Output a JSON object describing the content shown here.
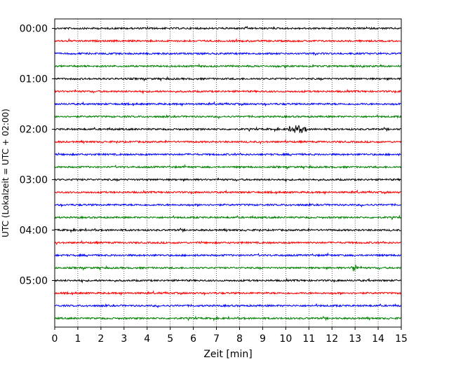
{
  "chart_data": {
    "type": "line",
    "title": "",
    "xlabel": "Zeit  [min]",
    "ylabel": "UTC (Lokalzeit = UTC + 02:00)",
    "xlim": [
      0,
      15
    ],
    "x_ticks": [
      "0",
      "1",
      "2",
      "3",
      "4",
      "5",
      "6",
      "7",
      "8",
      "9",
      "10",
      "11",
      "12",
      "13",
      "14",
      "15"
    ],
    "y_ticks": [
      "00:00",
      "01:00",
      "02:00",
      "03:00",
      "04:00",
      "05:00"
    ],
    "traces_per_hour": 4,
    "trace_count": 24,
    "trace_colors": [
      "#000000",
      "#ff0000",
      "#0000ff",
      "#008000"
    ],
    "grid": "vertical dotted lines at each minute",
    "events": [
      {
        "trace": 8,
        "minute_start": 10.0,
        "minute_end": 11.4,
        "level": 1.0
      },
      {
        "trace": 19,
        "minute_start": 12.8,
        "minute_end": 13.3,
        "level": 1.0
      }
    ]
  }
}
